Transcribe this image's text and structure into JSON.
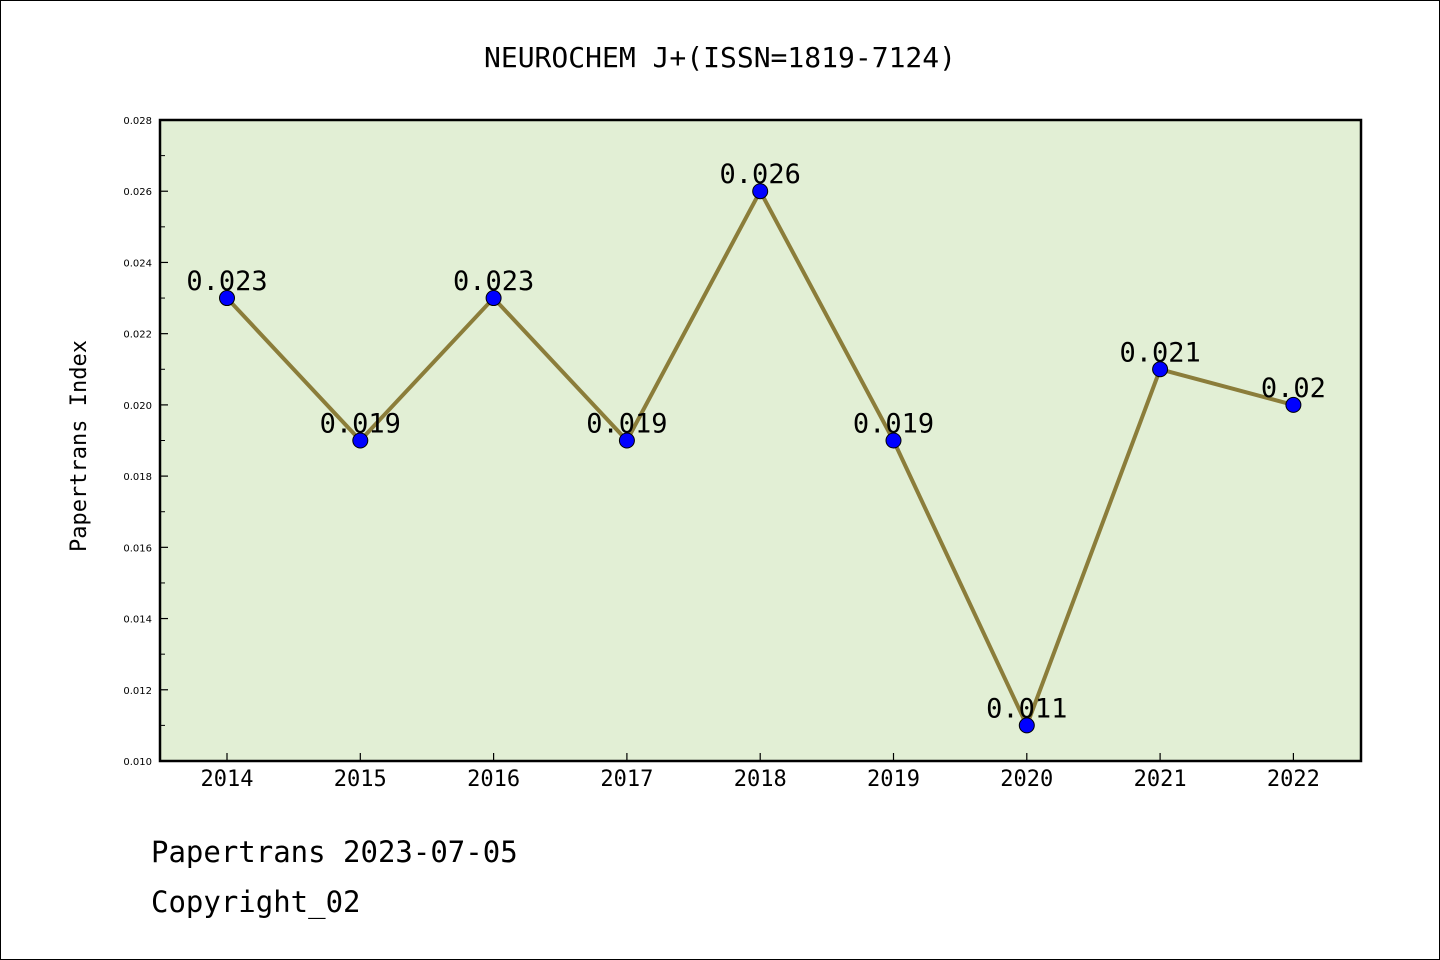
{
  "chart_data": {
    "type": "line",
    "title": "NEUROCHEM J+(ISSN=1819-7124)",
    "xlabel": "",
    "ylabel": "Papertrans Index",
    "categories": [
      "2014",
      "2015",
      "2016",
      "2017",
      "2018",
      "2019",
      "2020",
      "2021",
      "2022"
    ],
    "series": [
      {
        "values": [
          0.023,
          0.019,
          0.023,
          0.019,
          0.026,
          0.019,
          0.011,
          0.021,
          0.02
        ],
        "labels": [
          "0.023",
          "0.019",
          "0.023",
          "0.019",
          "0.026",
          "0.019",
          "0.011",
          "0.021",
          "0.02"
        ],
        "line_color": "#8b7d3a",
        "marker_color": "#0000ff"
      }
    ],
    "ylim": [
      0.01,
      0.028
    ],
    "yticks": [
      "0.010",
      "0.012",
      "0.014",
      "0.016",
      "0.018",
      "0.020",
      "0.022",
      "0.024",
      "0.026",
      "0.028"
    ],
    "plot_background": "#e2efd5",
    "grid": false,
    "legend": "none"
  },
  "footer": {
    "line1": "Papertrans 2023-07-05",
    "line2": "Copyright_02"
  }
}
